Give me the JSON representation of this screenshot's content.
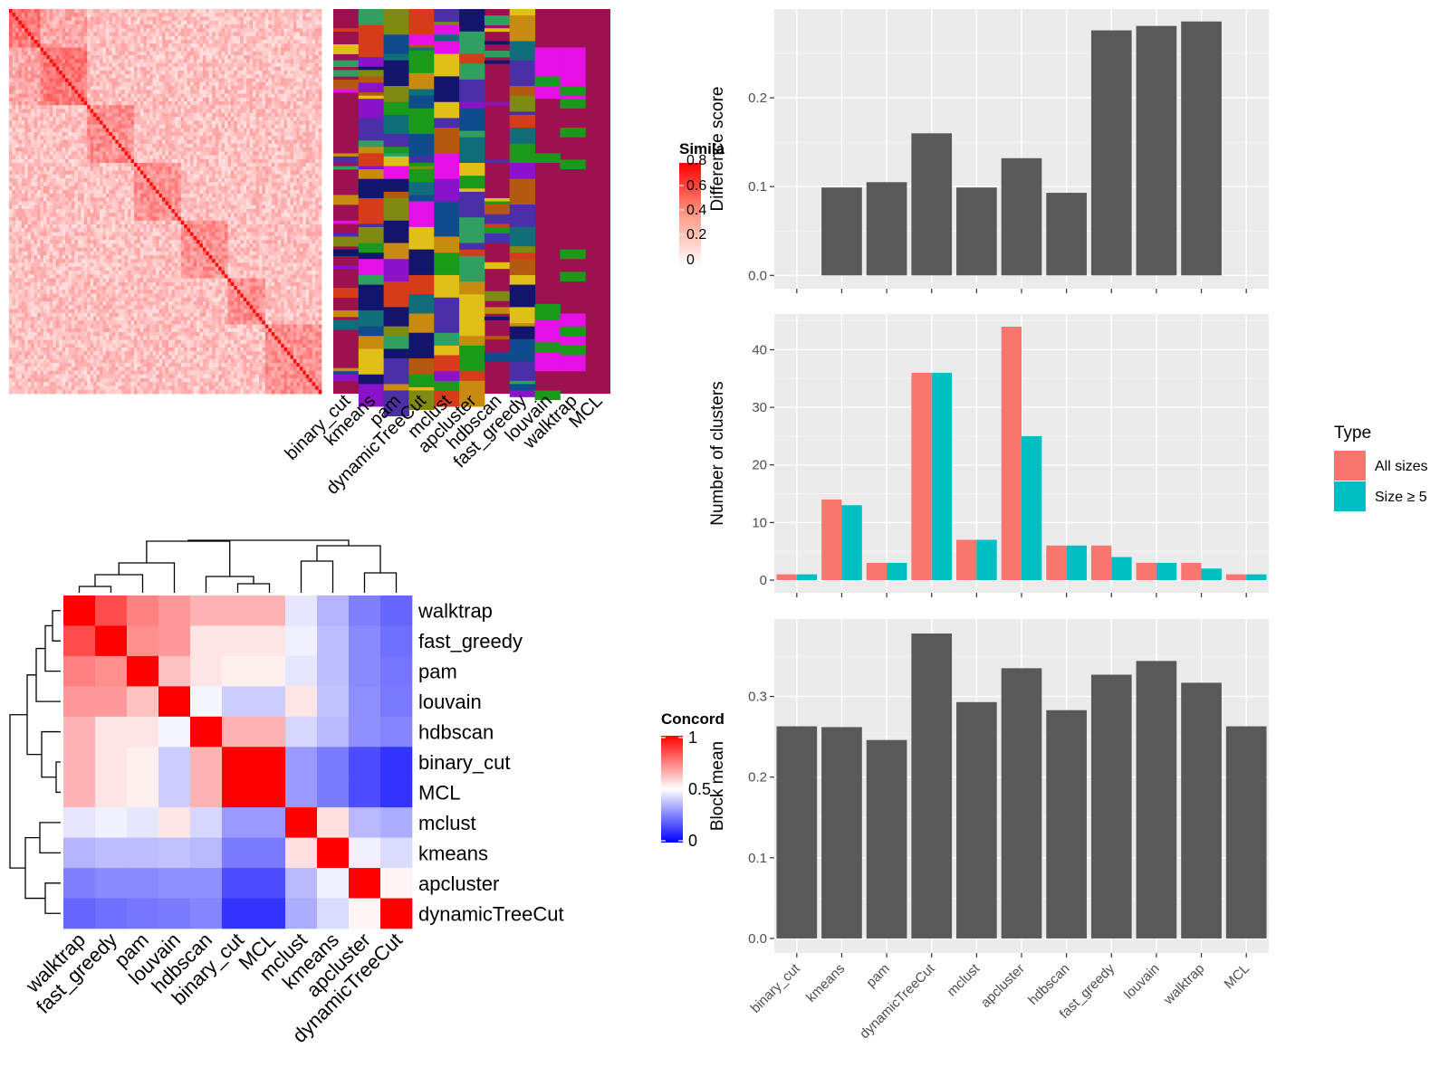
{
  "methods": [
    "binary_cut",
    "kmeans",
    "pam",
    "dynamicTreeCut",
    "mclust",
    "apcluster",
    "hdbscan",
    "fast_greedy",
    "louvain",
    "walktrap",
    "MCL"
  ],
  "colors": {
    "panel_bg": "#ebebeb",
    "grid": "#ffffff",
    "bar": "#595959",
    "all_sizes": "#f8766d",
    "size_ge5": "#00bfc4",
    "heat_low": "#0000ff",
    "heat_mid": "#ffffff",
    "heat_high": "#ff0000",
    "class_bg": "#9c1150",
    "class_palette": [
      "#1a9a1a",
      "#e60fe6",
      "#c98a10",
      "#0f6e7a",
      "#4a2fa8",
      "#d63b1a",
      "#7f8a12",
      "#e0c018",
      "#12156b",
      "#8a12c8",
      "#0e4c8c",
      "#b35a10",
      "#30a060"
    ]
  },
  "similarity_legend": {
    "title": "Simila",
    "ticks": [
      "0.8",
      "0.6",
      "0.4",
      "0.2",
      "0"
    ]
  },
  "concordance_legend": {
    "title": "Concord",
    "ticks": [
      "1",
      "0.5",
      "0"
    ]
  },
  "concordance": {
    "order": [
      "walktrap",
      "fast_greedy",
      "pam",
      "louvain",
      "hdbscan",
      "binary_cut",
      "MCL",
      "mclust",
      "kmeans",
      "apcluster",
      "dynamicTreeCut"
    ],
    "matrix": [
      [
        1.0,
        0.85,
        0.75,
        0.7,
        0.65,
        0.65,
        0.65,
        0.45,
        0.35,
        0.25,
        0.2
      ],
      [
        0.85,
        1.0,
        0.72,
        0.7,
        0.55,
        0.55,
        0.55,
        0.47,
        0.37,
        0.27,
        0.22
      ],
      [
        0.75,
        0.72,
        1.0,
        0.62,
        0.55,
        0.53,
        0.53,
        0.45,
        0.37,
        0.27,
        0.23
      ],
      [
        0.7,
        0.7,
        0.62,
        1.0,
        0.48,
        0.4,
        0.4,
        0.55,
        0.38,
        0.28,
        0.24
      ],
      [
        0.65,
        0.55,
        0.55,
        0.48,
        1.0,
        0.65,
        0.65,
        0.42,
        0.36,
        0.28,
        0.26
      ],
      [
        0.65,
        0.55,
        0.53,
        0.4,
        0.65,
        1.0,
        1.0,
        0.3,
        0.24,
        0.15,
        0.1
      ],
      [
        0.65,
        0.55,
        0.53,
        0.4,
        0.65,
        1.0,
        1.0,
        0.3,
        0.24,
        0.15,
        0.1
      ],
      [
        0.45,
        0.47,
        0.45,
        0.55,
        0.42,
        0.3,
        0.3,
        1.0,
        0.56,
        0.36,
        0.34
      ],
      [
        0.35,
        0.37,
        0.37,
        0.38,
        0.36,
        0.24,
        0.24,
        0.56,
        1.0,
        0.47,
        0.43
      ],
      [
        0.25,
        0.27,
        0.27,
        0.28,
        0.28,
        0.15,
        0.15,
        0.36,
        0.47,
        1.0,
        0.52
      ],
      [
        0.2,
        0.22,
        0.23,
        0.24,
        0.26,
        0.1,
        0.1,
        0.34,
        0.43,
        0.52,
        1.0
      ]
    ]
  },
  "chart_data": [
    {
      "type": "bar",
      "ylabel": "Difference score",
      "xlabel": "",
      "categories": [
        "binary_cut",
        "kmeans",
        "pam",
        "dynamicTreeCut",
        "mclust",
        "apcluster",
        "hdbscan",
        "fast_greedy",
        "louvain",
        "walktrap",
        "MCL"
      ],
      "values": [
        0,
        0.099,
        0.105,
        0.16,
        0.099,
        0.132,
        0.093,
        0.276,
        0.281,
        0.286,
        0
      ],
      "ylim": [
        -0.015,
        0.3
      ],
      "yticks": [
        "0.0",
        "0.1",
        "0.2"
      ],
      "ytick_values": [
        0,
        0.1,
        0.2
      ],
      "show_xticklabels": false
    },
    {
      "type": "bar",
      "ylabel": "Number of clusters",
      "xlabel": "",
      "categories": [
        "binary_cut",
        "kmeans",
        "pam",
        "dynamicTreeCut",
        "mclust",
        "apcluster",
        "hdbscan",
        "fast_greedy",
        "louvain",
        "walktrap",
        "MCL"
      ],
      "series": [
        {
          "name": "All sizes",
          "values": [
            1,
            14,
            3,
            36,
            7,
            44,
            6,
            6,
            3,
            3,
            1
          ]
        },
        {
          "name": "Size ≥ 5",
          "values": [
            1,
            13,
            3,
            36,
            7,
            25,
            6,
            4,
            3,
            2,
            1
          ]
        }
      ],
      "ylim": [
        -2.2,
        46.2
      ],
      "yticks": [
        "0",
        "10",
        "20",
        "30",
        "40"
      ],
      "ytick_values": [
        0,
        10,
        20,
        30,
        40
      ],
      "legend": {
        "title": "Type",
        "position": "right"
      },
      "show_xticklabels": false
    },
    {
      "type": "bar",
      "ylabel": "Block mean",
      "xlabel": "",
      "categories": [
        "binary_cut",
        "kmeans",
        "pam",
        "dynamicTreeCut",
        "mclust",
        "apcluster",
        "hdbscan",
        "fast_greedy",
        "louvain",
        "walktrap",
        "MCL"
      ],
      "values": [
        0.263,
        0.262,
        0.246,
        0.378,
        0.293,
        0.335,
        0.283,
        0.327,
        0.344,
        0.317,
        0.263
      ],
      "ylim": [
        -0.018,
        0.396
      ],
      "yticks": [
        "0.0",
        "0.1",
        "0.2",
        "0.3"
      ],
      "ytick_values": [
        0,
        0.1,
        0.2,
        0.3
      ],
      "show_xticklabels": true
    }
  ]
}
